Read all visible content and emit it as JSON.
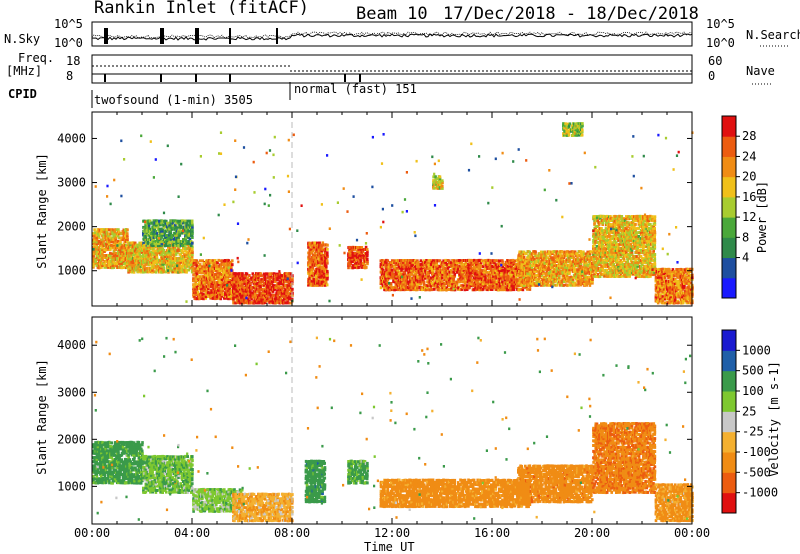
{
  "header": {
    "station": "Rankin Inlet (fitACF)",
    "beam": "Beam 10",
    "dates": "17/Dec/2018 - 18/Dec/2018"
  },
  "summary": {
    "nsky_label": "N.Sky",
    "nsky_ticks": [
      "10^5",
      "10^0"
    ],
    "nsearch_label": "N.Search",
    "nsearch_ticks": [
      "10^5",
      "10^0"
    ],
    "freq_label_1": "Freq.",
    "freq_label_2": "[MHz]",
    "freq_ticks": [
      "18",
      "8"
    ],
    "nave_label": "Nave",
    "nave_ticks": [
      "60",
      "0"
    ],
    "cpid_label": "CPID",
    "cpid_segments": [
      {
        "name": "twofsound (1-min) 3505",
        "start_hour": 0,
        "end_hour": 8
      },
      {
        "name": "normal (fast) 151",
        "start_hour": 8,
        "end_hour": 24
      }
    ]
  },
  "x_axis": {
    "label": "Time UT",
    "ticks": [
      "00:00",
      "04:00",
      "08:00",
      "12:00",
      "16:00",
      "20:00",
      "00:00"
    ]
  },
  "colors": {
    "power": [
      "#1a1aff",
      "#1e4fa0",
      "#2f8a4a",
      "#4aa83a",
      "#a8cc30",
      "#f0c01a",
      "#f08c14",
      "#ec5c10",
      "#e01010"
    ],
    "velocity": [
      "#e01010",
      "#ec5c10",
      "#f08c14",
      "#f4b030",
      "#c8c8c8",
      "#7ec830",
      "#3a9a4a",
      "#1f5fa8",
      "#1a1ad0"
    ]
  },
  "chart_data": [
    {
      "type": "heatmap",
      "title": "",
      "xlabel": "Time UT",
      "ylabel": "Slant Range [km]",
      "xlim": [
        0,
        24
      ],
      "ylim": [
        200,
        4600
      ],
      "yticks": [
        "1000",
        "2000",
        "3000",
        "4000"
      ],
      "colorbar": {
        "label": "Power [dB]",
        "ticks": [
          "28",
          "24",
          "20",
          "16",
          "12",
          "8",
          "4"
        ],
        "range": [
          0,
          32
        ]
      },
      "echo_regions": [
        {
          "t0": 0.0,
          "t1": 1.4,
          "r0": 1100,
          "r1": 2000,
          "value": 22
        },
        {
          "t0": 1.4,
          "t1": 4.0,
          "r0": 1000,
          "r1": 1700,
          "value": 20
        },
        {
          "t0": 2.0,
          "t1": 4.0,
          "r0": 1600,
          "r1": 2200,
          "value": 12
        },
        {
          "t0": 4.0,
          "t1": 5.6,
          "r0": 800,
          "r1": 1300,
          "value": 24
        },
        {
          "t0": 4.0,
          "t1": 6.0,
          "r0": 400,
          "r1": 800,
          "value": 26
        },
        {
          "t0": 5.6,
          "t1": 8.0,
          "r0": 300,
          "r1": 1000,
          "value": 28
        },
        {
          "t0": 8.6,
          "t1": 9.4,
          "r0": 700,
          "r1": 1700,
          "value": 26
        },
        {
          "t0": 10.2,
          "t1": 11.0,
          "r0": 1100,
          "r1": 1600,
          "value": 28
        },
        {
          "t0": 11.5,
          "t1": 17.5,
          "r0": 600,
          "r1": 1300,
          "value": 26
        },
        {
          "t0": 17.0,
          "t1": 20.0,
          "r0": 700,
          "r1": 1500,
          "value": 22
        },
        {
          "t0": 20.0,
          "t1": 22.5,
          "r0": 900,
          "r1": 2300,
          "value": 20
        },
        {
          "t0": 22.5,
          "t1": 24.0,
          "r0": 300,
          "r1": 1100,
          "value": 24
        },
        {
          "t0": 13.6,
          "t1": 14.0,
          "r0": 2900,
          "r1": 3200,
          "value": 18
        },
        {
          "t0": 18.8,
          "t1": 19.6,
          "r0": 4100,
          "r1": 4400,
          "value": 16
        }
      ]
    },
    {
      "type": "heatmap",
      "title": "",
      "xlabel": "Time UT",
      "ylabel": "Slant Range [km]",
      "xlim": [
        0,
        24
      ],
      "ylim": [
        200,
        4600
      ],
      "yticks": [
        "1000",
        "2000",
        "3000",
        "4000"
      ],
      "colorbar": {
        "label": "Velocity [m s-1]",
        "ticks": [
          "1000",
          "500",
          "100",
          "25",
          "-25",
          "-100",
          "-500",
          "-1000"
        ],
        "range": [
          -1000,
          1000
        ]
      },
      "echo_regions": [
        {
          "t0": 0.0,
          "t1": 2.0,
          "r0": 1100,
          "r1": 2000,
          "value": 200
        },
        {
          "t0": 2.0,
          "t1": 4.0,
          "r0": 900,
          "r1": 1700,
          "value": 80
        },
        {
          "t0": 4.0,
          "t1": 6.0,
          "r0": 500,
          "r1": 1000,
          "value": 60
        },
        {
          "t0": 5.6,
          "t1": 8.0,
          "r0": 300,
          "r1": 900,
          "value": -80
        },
        {
          "t0": 8.5,
          "t1": 9.3,
          "r0": 700,
          "r1": 1600,
          "value": 300
        },
        {
          "t0": 10.2,
          "t1": 11.0,
          "r0": 1100,
          "r1": 1600,
          "value": 120
        },
        {
          "t0": 11.5,
          "t1": 17.5,
          "r0": 600,
          "r1": 1200,
          "value": -250
        },
        {
          "t0": 17.0,
          "t1": 20.0,
          "r0": 700,
          "r1": 1500,
          "value": -300
        },
        {
          "t0": 20.0,
          "t1": 22.5,
          "r0": 900,
          "r1": 2400,
          "value": -400
        },
        {
          "t0": 22.5,
          "t1": 24.0,
          "r0": 300,
          "r1": 1100,
          "value": -150
        }
      ]
    }
  ]
}
